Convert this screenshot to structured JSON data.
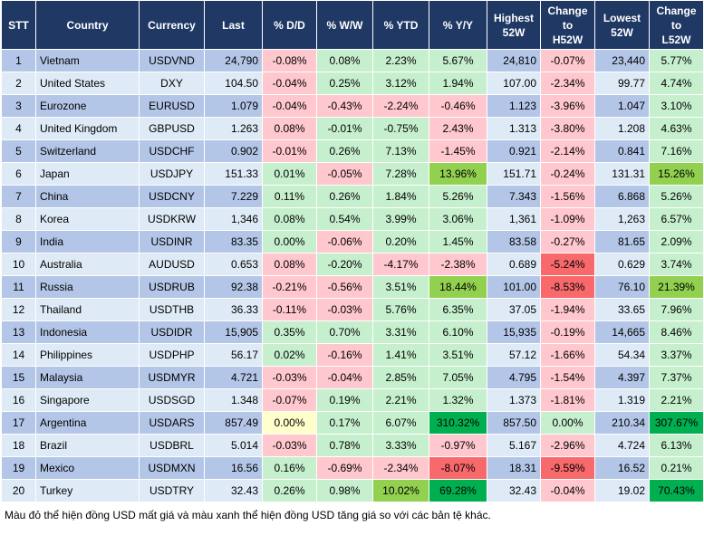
{
  "headers": {
    "stt": "STT",
    "country": "Country",
    "currency": "Currency",
    "last": "Last",
    "dd": "% D/D",
    "ww": "% W/W",
    "ytd": "% YTD",
    "yy": "% Y/Y",
    "high_line1": "Highest",
    "high_line2": "52W",
    "chh_line1": "Change",
    "chh_line2": "to",
    "chh_line3": "H52W",
    "low_line1": "Lowest",
    "low_line2": "52W",
    "chl_line1": "Change",
    "chl_line2": "to",
    "chl_line3": "L52W"
  },
  "rows": [
    {
      "stt": "1",
      "country": "Vietnam",
      "currency": "USDVND",
      "last": "24,790",
      "dd": "-0.08%",
      "ww": "0.08%",
      "ytd": "2.23%",
      "yy": "5.67%",
      "high": "24,810",
      "chh": "-0.07%",
      "low": "23,440",
      "chl": "5.77%"
    },
    {
      "stt": "2",
      "country": "United States",
      "currency": "DXY",
      "last": "104.50",
      "dd": "-0.04%",
      "ww": "0.25%",
      "ytd": "3.12%",
      "yy": "1.94%",
      "high": "107.00",
      "chh": "-2.34%",
      "low": "99.77",
      "chl": "4.74%"
    },
    {
      "stt": "3",
      "country": "Eurozone",
      "currency": "EURUSD",
      "last": "1.079",
      "dd": "-0.04%",
      "ww": "-0.43%",
      "ytd": "-2.24%",
      "yy": "-0.46%",
      "high": "1.123",
      "chh": "-3.96%",
      "low": "1.047",
      "chl": "3.10%"
    },
    {
      "stt": "4",
      "country": "United Kingdom",
      "currency": "GBPUSD",
      "last": "1.263",
      "dd": "0.08%",
      "ww": "-0.01%",
      "ytd": "-0.75%",
      "yy": "2.43%",
      "high": "1.313",
      "chh": "-3.80%",
      "low": "1.208",
      "chl": "4.63%"
    },
    {
      "stt": "5",
      "country": "Switzerland",
      "currency": "USDCHF",
      "last": "0.902",
      "dd": "-0.01%",
      "ww": "0.26%",
      "ytd": "7.13%",
      "yy": "-1.45%",
      "high": "0.921",
      "chh": "-2.14%",
      "low": "0.841",
      "chl": "7.16%"
    },
    {
      "stt": "6",
      "country": "Japan",
      "currency": "USDJPY",
      "last": "151.33",
      "dd": "0.01%",
      "ww": "-0.05%",
      "ytd": "7.28%",
      "yy": "13.96%",
      "high": "151.71",
      "chh": "-0.24%",
      "low": "131.31",
      "chl": "15.26%"
    },
    {
      "stt": "7",
      "country": "China",
      "currency": "USDCNY",
      "last": "7.229",
      "dd": "0.11%",
      "ww": "0.26%",
      "ytd": "1.84%",
      "yy": "5.26%",
      "high": "7.343",
      "chh": "-1.56%",
      "low": "6.868",
      "chl": "5.26%"
    },
    {
      "stt": "8",
      "country": "Korea",
      "currency": "USDKRW",
      "last": "1,346",
      "dd": "0.08%",
      "ww": "0.54%",
      "ytd": "3.99%",
      "yy": "3.06%",
      "high": "1,361",
      "chh": "-1.09%",
      "low": "1,263",
      "chl": "6.57%"
    },
    {
      "stt": "9",
      "country": "India",
      "currency": "USDINR",
      "last": "83.35",
      "dd": "0.00%",
      "ww": "-0.06%",
      "ytd": "0.20%",
      "yy": "1.45%",
      "high": "83.58",
      "chh": "-0.27%",
      "low": "81.65",
      "chl": "2.09%"
    },
    {
      "stt": "10",
      "country": "Australia",
      "currency": "AUDUSD",
      "last": "0.653",
      "dd": "0.08%",
      "ww": "-0.20%",
      "ytd": "-4.17%",
      "yy": "-2.38%",
      "high": "0.689",
      "chh": "-5.24%",
      "low": "0.629",
      "chl": "3.74%"
    },
    {
      "stt": "11",
      "country": "Russia",
      "currency": "USDRUB",
      "last": "92.38",
      "dd": "-0.21%",
      "ww": "-0.56%",
      "ytd": "3.51%",
      "yy": "18.44%",
      "high": "101.00",
      "chh": "-8.53%",
      "low": "76.10",
      "chl": "21.39%"
    },
    {
      "stt": "12",
      "country": "Thailand",
      "currency": "USDTHB",
      "last": "36.33",
      "dd": "-0.11%",
      "ww": "-0.03%",
      "ytd": "5.76%",
      "yy": "6.35%",
      "high": "37.05",
      "chh": "-1.94%",
      "low": "33.65",
      "chl": "7.96%"
    },
    {
      "stt": "13",
      "country": "Indonesia",
      "currency": "USDIDR",
      "last": "15,905",
      "dd": "0.35%",
      "ww": "0.70%",
      "ytd": "3.31%",
      "yy": "6.10%",
      "high": "15,935",
      "chh": "-0.19%",
      "low": "14,665",
      "chl": "8.46%"
    },
    {
      "stt": "14",
      "country": "Philippines",
      "currency": "USDPHP",
      "last": "56.17",
      "dd": "0.02%",
      "ww": "-0.16%",
      "ytd": "1.41%",
      "yy": "3.51%",
      "high": "57.12",
      "chh": "-1.66%",
      "low": "54.34",
      "chl": "3.37%"
    },
    {
      "stt": "15",
      "country": "Malaysia",
      "currency": "USDMYR",
      "last": "4.721",
      "dd": "-0.03%",
      "ww": "-0.04%",
      "ytd": "2.85%",
      "yy": "7.05%",
      "high": "4.795",
      "chh": "-1.54%",
      "low": "4.397",
      "chl": "7.37%"
    },
    {
      "stt": "16",
      "country": "Singapore",
      "currency": "USDSGD",
      "last": "1.348",
      "dd": "-0.07%",
      "ww": "0.19%",
      "ytd": "2.21%",
      "yy": "1.32%",
      "high": "1.373",
      "chh": "-1.81%",
      "low": "1.319",
      "chl": "2.21%"
    },
    {
      "stt": "17",
      "country": "Argentina",
      "currency": "USDARS",
      "last": "857.49",
      "dd": "0.00%",
      "ww": "0.17%",
      "ytd": "6.07%",
      "yy": "310.32%",
      "high": "857.50",
      "chh": "0.00%",
      "low": "210.34",
      "chl": "307.67%"
    },
    {
      "stt": "18",
      "country": "Brazil",
      "currency": "USDBRL",
      "last": "5.014",
      "dd": "-0.03%",
      "ww": "0.78%",
      "ytd": "3.33%",
      "yy": "-0.97%",
      "high": "5.167",
      "chh": "-2.96%",
      "low": "4.724",
      "chl": "6.13%"
    },
    {
      "stt": "19",
      "country": "Mexico",
      "currency": "USDMXN",
      "last": "16.56",
      "dd": "0.16%",
      "ww": "-0.69%",
      "ytd": "-2.34%",
      "yy": "-8.07%",
      "high": "18.31",
      "chh": "-9.59%",
      "low": "16.52",
      "chl": "0.21%"
    },
    {
      "stt": "20",
      "country": "Turkey",
      "currency": "USDTRY",
      "last": "32.43",
      "dd": "0.26%",
      "ww": "0.98%",
      "ytd": "10.02%",
      "yy": "69.28%",
      "high": "32.43",
      "chh": "-0.04%",
      "low": "19.02",
      "chl": "70.43%"
    }
  ],
  "cell_colors": {
    "1": {
      "dd": "neg-1",
      "ww": "pos-1",
      "ytd": "pos-1",
      "yy": "pos-1",
      "chh": "neg-1",
      "chl": "pos-1"
    },
    "2": {
      "dd": "neg-1",
      "ww": "pos-1",
      "ytd": "pos-1",
      "yy": "pos-1",
      "chh": "neg-1",
      "chl": "pos-1"
    },
    "3": {
      "dd": "neg-1",
      "ww": "neg-1",
      "ytd": "neg-1",
      "yy": "neg-1",
      "chh": "neg-1",
      "chl": "pos-1"
    },
    "4": {
      "dd": "neg-1",
      "ww": "pos-1",
      "ytd": "pos-1",
      "yy": "neg-1",
      "chh": "neg-1",
      "chl": "pos-1"
    },
    "5": {
      "dd": "neg-1",
      "ww": "pos-1",
      "ytd": "pos-1",
      "yy": "neg-1",
      "chh": "neg-1",
      "chl": "pos-1"
    },
    "6": {
      "dd": "pos-1",
      "ww": "neg-1",
      "ytd": "pos-1",
      "yy": "pos-2",
      "chh": "neg-1",
      "chl": "pos-2"
    },
    "7": {
      "dd": "pos-1",
      "ww": "pos-1",
      "ytd": "pos-1",
      "yy": "pos-1",
      "chh": "neg-1",
      "chl": "pos-1"
    },
    "8": {
      "dd": "pos-1",
      "ww": "pos-1",
      "ytd": "pos-1",
      "yy": "pos-1",
      "chh": "neg-1",
      "chl": "pos-1"
    },
    "9": {
      "dd": "pos-1",
      "ww": "neg-1",
      "ytd": "pos-1",
      "yy": "pos-1",
      "chh": "neg-1",
      "chl": "pos-1"
    },
    "10": {
      "dd": "neg-1",
      "ww": "pos-1",
      "ytd": "neg-1",
      "yy": "neg-1",
      "chh": "neg-2",
      "chl": "pos-1"
    },
    "11": {
      "dd": "neg-1",
      "ww": "neg-1",
      "ytd": "pos-1",
      "yy": "pos-2",
      "chh": "neg-2",
      "chl": "pos-2"
    },
    "12": {
      "dd": "neg-1",
      "ww": "neg-1",
      "ytd": "pos-1",
      "yy": "pos-1",
      "chh": "neg-1",
      "chl": "pos-1"
    },
    "13": {
      "dd": "pos-1",
      "ww": "pos-1",
      "ytd": "pos-1",
      "yy": "pos-1",
      "chh": "neg-1",
      "chl": "pos-1"
    },
    "14": {
      "dd": "pos-1",
      "ww": "neg-1",
      "ytd": "pos-1",
      "yy": "pos-1",
      "chh": "neg-1",
      "chl": "pos-1"
    },
    "15": {
      "dd": "neg-1",
      "ww": "neg-1",
      "ytd": "pos-1",
      "yy": "pos-1",
      "chh": "neg-1",
      "chl": "pos-1"
    },
    "16": {
      "dd": "neg-1",
      "ww": "pos-1",
      "ytd": "pos-1",
      "yy": "pos-1",
      "chh": "neg-1",
      "chl": "pos-1"
    },
    "17": {
      "dd": "zero",
      "ww": "pos-1",
      "ytd": "pos-1",
      "yy": "pos-3",
      "chh": "pos-1",
      "chl": "pos-3"
    },
    "18": {
      "dd": "neg-1",
      "ww": "pos-1",
      "ytd": "pos-1",
      "yy": "neg-1",
      "chh": "neg-1",
      "chl": "pos-1"
    },
    "19": {
      "dd": "pos-1",
      "ww": "neg-1",
      "ytd": "neg-1",
      "yy": "neg-2",
      "chh": "neg-2",
      "chl": "pos-1"
    },
    "20": {
      "dd": "pos-1",
      "ww": "pos-1",
      "ytd": "pos-2",
      "yy": "pos-3",
      "chh": "neg-1",
      "chl": "pos-3"
    }
  },
  "colors": {
    "header_bg": "#1f3864",
    "row_odd": "#b4c6e7",
    "row_even": "#deeaf6",
    "neg_light": "#ffc7ce",
    "neg_strong": "#f8696b",
    "pos_light": "#c6efce",
    "pos_medium": "#92d050",
    "pos_strong": "#00b050",
    "neutral": "#ffffcc"
  },
  "footnote": "Màu đỏ thể hiện đồng USD mất giá và màu xanh thể hiện đồng USD tăng giá so với các bản tệ khác."
}
